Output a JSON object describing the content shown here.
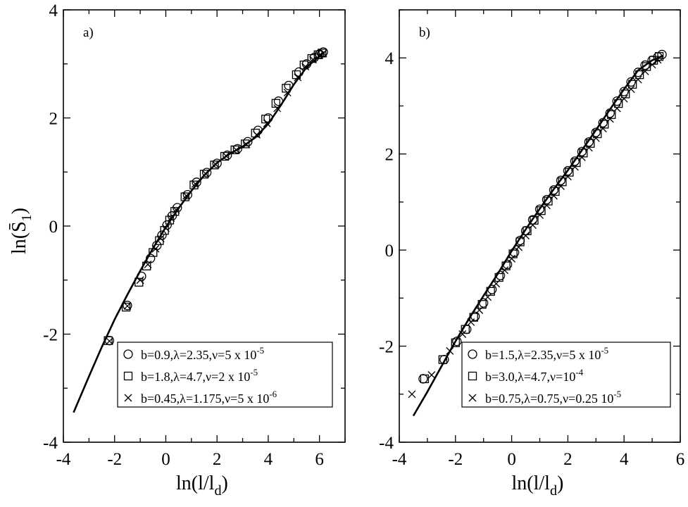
{
  "chart_data": [
    {
      "type": "scatter",
      "panel_label": "a)",
      "xlabel": "ln(l/l_d)",
      "ylabel": "ln(S̄_1)",
      "xlim": [
        -4,
        7
      ],
      "ylim": [
        -4,
        4
      ],
      "xticks": [
        -4,
        -2,
        0,
        2,
        4,
        6
      ],
      "yticks": [
        -4,
        -2,
        0,
        2,
        4
      ],
      "grid": false,
      "legend_position": "bottom-right",
      "fit_line": {
        "x": [
          -3.6,
          -3.0,
          -2.5,
          -2.0,
          -1.5,
          -1.0,
          -0.5,
          0.0,
          0.5,
          1.0,
          1.5,
          2.0,
          2.5,
          3.0,
          3.5,
          4.0,
          4.5,
          5.0,
          5.5,
          6.0,
          6.2
        ],
        "y": [
          -3.45,
          -2.78,
          -2.24,
          -1.73,
          -1.27,
          -0.83,
          -0.41,
          -0.02,
          0.33,
          0.65,
          0.94,
          1.17,
          1.34,
          1.47,
          1.64,
          1.89,
          2.24,
          2.62,
          2.94,
          3.14,
          3.22
        ]
      },
      "series": [
        {
          "marker": "circle",
          "legend": {
            "prefix": "b=0.9,λ=2.35,ν=5 x 10",
            "exp": "-5"
          },
          "x": [
            -2.2,
            -1.5,
            -0.95,
            -0.6,
            -0.35,
            -0.15,
            0.05,
            0.25,
            0.45,
            0.85,
            1.2,
            1.6,
            2.0,
            2.4,
            2.8,
            3.2,
            3.6,
            4.0,
            4.4,
            4.8,
            5.2,
            5.5,
            5.8,
            6.0,
            6.15
          ],
          "y": [
            -2.12,
            -1.47,
            -0.93,
            -0.6,
            -0.36,
            -0.17,
            0.02,
            0.19,
            0.34,
            0.58,
            0.81,
            0.99,
            1.16,
            1.31,
            1.43,
            1.56,
            1.77,
            2.0,
            2.31,
            2.6,
            2.85,
            3.0,
            3.12,
            3.18,
            3.22
          ]
        },
        {
          "marker": "square",
          "legend": {
            "prefix": "b=1.8,λ=4.7,ν=2 x 10",
            "exp": "-5"
          },
          "x": [
            -2.25,
            -1.55,
            -1.05,
            -0.75,
            -0.5,
            -0.25,
            -0.05,
            0.15,
            0.35,
            0.75,
            1.1,
            1.5,
            1.9,
            2.3,
            2.7,
            3.1,
            3.5,
            3.9,
            4.3,
            4.7,
            5.1,
            5.4,
            5.7,
            5.95,
            6.1
          ],
          "y": [
            -2.12,
            -1.5,
            -1.04,
            -0.74,
            -0.49,
            -0.27,
            -0.08,
            0.11,
            0.27,
            0.54,
            0.76,
            0.96,
            1.13,
            1.29,
            1.41,
            1.52,
            1.72,
            1.98,
            2.27,
            2.55,
            2.8,
            2.98,
            3.1,
            3.17,
            3.2
          ]
        },
        {
          "marker": "x",
          "legend": {
            "prefix": "b=0.45,λ=1.175,ν=5 x 10",
            "exp": "-6"
          },
          "x": [
            -2.2,
            -1.5,
            -1.0,
            -0.7,
            -0.4,
            -0.2,
            0.0,
            0.2,
            0.4,
            0.8,
            1.15,
            1.55,
            1.95,
            2.35,
            2.75,
            3.15,
            3.55,
            3.95,
            4.35,
            4.75,
            5.15,
            5.45,
            5.75,
            6.0,
            6.15
          ],
          "y": [
            -2.13,
            -1.48,
            -1.0,
            -0.71,
            -0.42,
            -0.23,
            -0.04,
            0.15,
            0.3,
            0.56,
            0.78,
            0.97,
            1.14,
            1.3,
            1.41,
            1.51,
            1.69,
            1.9,
            2.18,
            2.47,
            2.75,
            2.95,
            3.08,
            3.16,
            3.2
          ]
        }
      ]
    },
    {
      "type": "scatter",
      "panel_label": "b)",
      "xlabel": "ln(l/l_d)",
      "ylabel": "",
      "xlim": [
        -4,
        6
      ],
      "ylim": [
        -4,
        5
      ],
      "xticks": [
        -4,
        -2,
        0,
        2,
        4,
        6
      ],
      "yticks": [
        -4,
        -2,
        0,
        2,
        4
      ],
      "grid": false,
      "legend_position": "bottom-right",
      "fit_line": {
        "x": [
          -3.5,
          -3.0,
          -2.5,
          -2.0,
          -1.5,
          -1.0,
          -0.5,
          0.0,
          0.5,
          1.0,
          1.5,
          2.0,
          2.5,
          3.0,
          3.5,
          4.0,
          4.5,
          5.0,
          5.4
        ],
        "y": [
          -3.45,
          -2.95,
          -2.42,
          -1.9,
          -1.41,
          -0.95,
          -0.5,
          -0.02,
          0.43,
          0.86,
          1.27,
          1.66,
          2.08,
          2.5,
          2.93,
          3.35,
          3.74,
          3.95,
          4.05
        ]
      },
      "series": [
        {
          "marker": "circle",
          "legend": {
            "prefix": "b=1.5,λ=2.35,ν=5 x 10",
            "exp": "-5"
          },
          "x": [
            -3.15,
            -2.4,
            -1.95,
            -1.6,
            -1.3,
            -1.0,
            -0.7,
            -0.4,
            -0.15,
            0.1,
            0.3,
            0.5,
            0.75,
            1.0,
            1.25,
            1.5,
            1.75,
            2.0,
            2.25,
            2.5,
            2.75,
            3.0,
            3.25,
            3.5,
            3.75,
            4.0,
            4.25,
            4.5,
            4.75,
            5.0,
            5.2,
            5.35
          ],
          "y": [
            -2.68,
            -2.28,
            -1.9,
            -1.65,
            -1.38,
            -1.1,
            -0.82,
            -0.53,
            -0.3,
            -0.05,
            0.2,
            0.4,
            0.63,
            0.85,
            1.05,
            1.25,
            1.45,
            1.65,
            1.85,
            2.05,
            2.25,
            2.45,
            2.65,
            2.85,
            3.1,
            3.3,
            3.5,
            3.7,
            3.85,
            3.95,
            4.02,
            4.07
          ]
        },
        {
          "marker": "square",
          "legend": {
            "prefix": "b=3.0,λ=4.7,ν=10",
            "exp": "-4"
          },
          "x": [
            -3.1,
            -2.45,
            -2.0,
            -1.65,
            -1.35,
            -1.05,
            -0.75,
            -0.45,
            -0.2,
            0.05,
            0.3,
            0.55,
            0.8,
            1.05,
            1.3,
            1.55,
            1.8,
            2.05,
            2.3,
            2.55,
            2.8,
            3.05,
            3.3,
            3.55,
            3.8,
            4.05,
            4.3,
            4.55,
            4.8,
            5.05,
            5.25
          ],
          "y": [
            -2.68,
            -2.28,
            -1.93,
            -1.65,
            -1.4,
            -1.13,
            -0.86,
            -0.57,
            -0.33,
            -0.08,
            0.17,
            0.4,
            0.62,
            0.82,
            1.02,
            1.22,
            1.42,
            1.62,
            1.82,
            2.02,
            2.22,
            2.42,
            2.62,
            2.82,
            3.05,
            3.25,
            3.45,
            3.65,
            3.82,
            3.95,
            4.03
          ]
        },
        {
          "marker": "x",
          "legend": {
            "prefix": "b=0.75,λ=0.75,ν=0.25 10",
            "exp": "-5"
          },
          "x": [
            -3.55,
            -2.85,
            -2.2,
            -1.75,
            -1.45,
            -1.15,
            -0.85,
            -0.55,
            -0.25,
            0.0,
            0.25,
            0.5,
            0.75,
            1.0,
            1.25,
            1.5,
            1.75,
            2.0,
            2.25,
            2.5,
            2.75,
            3.0,
            3.25,
            3.5,
            3.75,
            4.0,
            4.25,
            4.5,
            4.75,
            5.0,
            5.2
          ],
          "y": [
            -3.0,
            -2.6,
            -2.1,
            -1.75,
            -1.5,
            -1.25,
            -0.98,
            -0.7,
            -0.42,
            -0.18,
            0.06,
            0.3,
            0.52,
            0.73,
            0.93,
            1.13,
            1.33,
            1.53,
            1.73,
            1.93,
            2.13,
            2.33,
            2.53,
            2.73,
            2.95,
            3.15,
            3.35,
            3.55,
            3.72,
            3.86,
            3.96
          ]
        }
      ]
    }
  ]
}
